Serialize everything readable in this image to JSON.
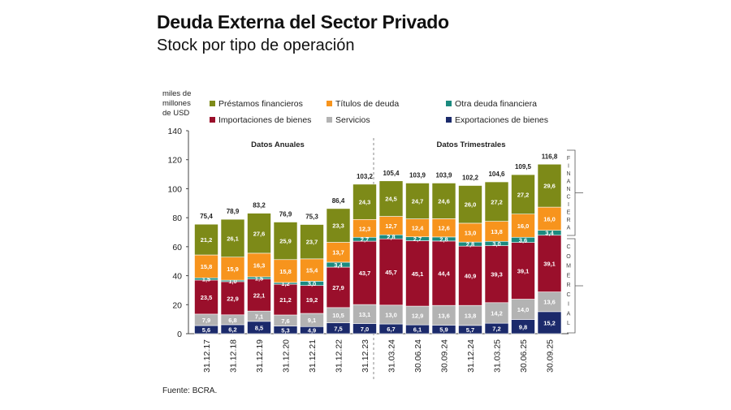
{
  "header": {
    "title": "Deuda Externa del Sector Privado",
    "subtitle": "Stock por tipo de operación"
  },
  "source": "Fuente: BCRA.",
  "chart_data": {
    "type": "bar",
    "stacked": true,
    "ylabel": "miles de millones de USD",
    "ylim": [
      0,
      140
    ],
    "yticks": [
      0,
      20,
      40,
      60,
      80,
      100,
      120,
      140
    ],
    "grid": false,
    "legend_position": "top",
    "section_labels": [
      "Datos Anuales",
      "Datos Trimestrales"
    ],
    "bracket_labels": [
      "FINANCIERA",
      "COMERCIAL"
    ],
    "categories": [
      "31.12.17",
      "31.12.18",
      "31.12.19",
      "31.12.20",
      "31.12.21",
      "31.12.22",
      "31.12.23",
      "31.03.24",
      "30.06.24",
      "30.09.24",
      "31.12.24",
      "31.03.25",
      "30.06.25",
      "30.09.25"
    ],
    "totals": [
      "75,4",
      "78,9",
      "83,2",
      "76,9",
      "75,3",
      "86,4",
      "103,2",
      "105,4",
      "103,9",
      "103,9",
      "102,2",
      "104,6",
      "109,5",
      "116,8"
    ],
    "series": [
      {
        "name": "Exportaciones de bienes",
        "color": "#1b2a6b",
        "values": [
          5.6,
          6.2,
          8.5,
          5.3,
          4.9,
          7.5,
          7.0,
          6.7,
          6.1,
          5.9,
          5.7,
          7.2,
          9.8,
          15.2
        ]
      },
      {
        "name": "Servicios",
        "color": "#b3b3b3",
        "values": [
          7.9,
          6.8,
          7.1,
          7.6,
          9.1,
          10.5,
          13.1,
          13.0,
          12.9,
          13.6,
          13.8,
          14.2,
          14.0,
          13.6
        ]
      },
      {
        "name": "Importaciones de bienes",
        "color": "#9a0f2b",
        "values": [
          23.5,
          22.9,
          22.1,
          21.2,
          19.2,
          27.9,
          43.7,
          45.7,
          45.1,
          44.4,
          40.9,
          39.3,
          39.1,
          39.1
        ]
      },
      {
        "name": "Otra deuda financiera",
        "color": "#1b8a7f",
        "values": [
          1.5,
          1.0,
          1.5,
          1.2,
          3.0,
          3.4,
          2.7,
          2.8,
          2.7,
          2.8,
          2.8,
          3.0,
          3.6,
          3.4
        ]
      },
      {
        "name": "Títulos de deuda",
        "color": "#f7941d",
        "values": [
          15.8,
          15.9,
          16.3,
          15.8,
          15.4,
          13.7,
          12.3,
          12.7,
          12.4,
          12.6,
          13.0,
          13.8,
          16.0,
          16.0
        ]
      },
      {
        "name": "Préstamos financieros",
        "color": "#7d8a18",
        "values": [
          21.2,
          26.1,
          27.6,
          25.9,
          23.7,
          23.3,
          24.3,
          24.5,
          24.7,
          24.6,
          26.0,
          27.2,
          27.2,
          29.6
        ]
      }
    ],
    "legend_order": [
      "Préstamos financieros",
      "Títulos de deuda",
      "Otra deuda financiera",
      "Importaciones de bienes",
      "Servicios",
      "Exportaciones de bienes"
    ]
  }
}
